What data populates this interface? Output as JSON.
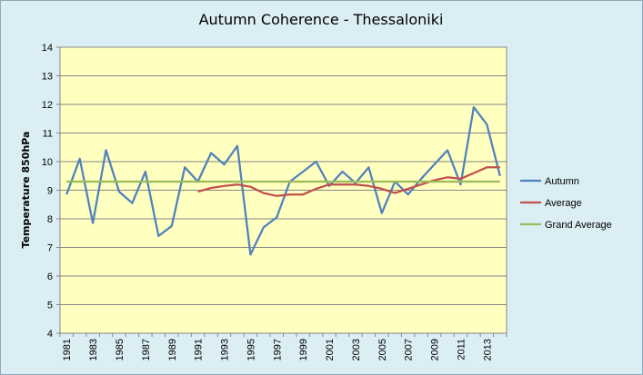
{
  "chart_data": {
    "type": "line",
    "title": "Autumn Coherence - Thessaloniki",
    "xlabel": "",
    "ylabel": "Temperature 850hPa",
    "ylim": [
      4,
      14
    ],
    "yticks": [
      "4",
      "5",
      "6",
      "7",
      "8",
      "9",
      "10",
      "11",
      "12",
      "13",
      "14"
    ],
    "xtick_labels": [
      "1981",
      "1983",
      "1985",
      "1987",
      "1989",
      "1991",
      "1993",
      "1995",
      "1997",
      "1999",
      "2001",
      "2003",
      "2005",
      "2007",
      "2009",
      "2011",
      "2013"
    ],
    "x": [
      1981,
      1982,
      1983,
      1984,
      1985,
      1986,
      1987,
      1988,
      1989,
      1990,
      1991,
      1992,
      1993,
      1994,
      1995,
      1996,
      1997,
      1998,
      1999,
      2000,
      2001,
      2002,
      2003,
      2004,
      2005,
      2006,
      2007,
      2008,
      2009,
      2010,
      2011,
      2012,
      2013,
      2014
    ],
    "grid": "horizontal",
    "legend_position": "right",
    "series": [
      {
        "name": "Autumn",
        "color": "#4f81bd",
        "values": [
          8.85,
          10.1,
          7.85,
          10.4,
          8.95,
          8.55,
          9.65,
          7.4,
          7.75,
          9.8,
          9.3,
          10.3,
          9.9,
          10.55,
          6.75,
          7.7,
          8.05,
          9.3,
          9.65,
          10.0,
          9.15,
          9.65,
          9.25,
          9.8,
          8.2,
          9.3,
          8.85,
          9.4,
          9.9,
          10.4,
          9.2,
          11.9,
          11.3,
          9.5
        ]
      },
      {
        "name": "Average",
        "color": "#c0504d",
        "values": [
          null,
          null,
          null,
          null,
          null,
          null,
          null,
          null,
          null,
          null,
          8.95,
          9.08,
          9.15,
          9.2,
          9.12,
          8.9,
          8.8,
          8.85,
          8.85,
          9.05,
          9.2,
          9.2,
          9.2,
          9.15,
          9.05,
          8.9,
          9.05,
          9.2,
          9.35,
          9.45,
          9.4,
          9.6,
          9.8,
          9.8
        ]
      },
      {
        "name": "Grand Average",
        "color": "#9bbb59",
        "values": [
          9.3,
          9.3,
          9.3,
          9.3,
          9.3,
          9.3,
          9.3,
          9.3,
          9.3,
          9.3,
          9.3,
          9.3,
          9.3,
          9.3,
          9.3,
          9.3,
          9.3,
          9.3,
          9.3,
          9.3,
          9.3,
          9.3,
          9.3,
          9.3,
          9.3,
          9.3,
          9.3,
          9.3,
          9.3,
          9.3,
          9.3,
          9.3,
          9.3,
          9.3
        ]
      }
    ]
  }
}
